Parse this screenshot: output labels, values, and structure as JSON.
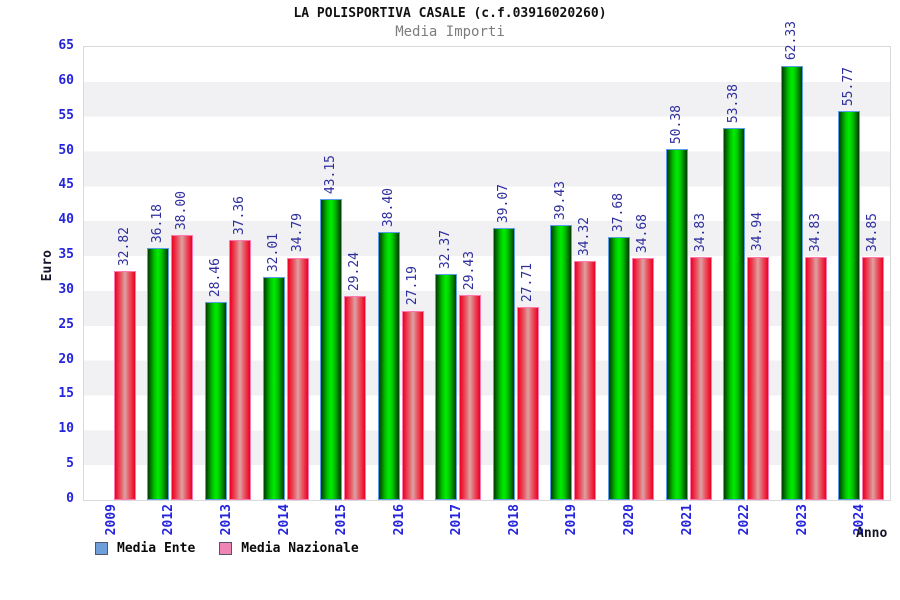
{
  "title": "LA POLISPORTIVA CASALE (c.f.03916020260)",
  "subtitle": "Media Importi",
  "ylabel": "Euro",
  "xlabel": "Anno",
  "legend": {
    "items": [
      {
        "label": "Media Ente",
        "color": "#6f9fd8"
      },
      {
        "label": "Media Nazionale",
        "color": "#ef85b5"
      }
    ]
  },
  "colors": {
    "ente_bar": "#00e000",
    "ente_border": "#5c9fe8",
    "nazionale_bar": "#ee0022",
    "nazionale_border": "#ff78b0",
    "axis_text": "#2424dd",
    "value_text": "#2e2e9e",
    "band_gray": "#f1f1f3",
    "band_white": "#ffffff"
  },
  "chart_data": {
    "type": "bar",
    "title": "Media Importi",
    "xlabel": "Anno",
    "ylabel": "Euro",
    "ylim": [
      0,
      65
    ],
    "ytick_step": 5,
    "grid": "alternating horizontal bands every 5 units",
    "legend_position": "bottom-left",
    "categories": [
      "2009",
      "2012",
      "2013",
      "2014",
      "2015",
      "2016",
      "2017",
      "2018",
      "2019",
      "2020",
      "2021",
      "2022",
      "2023",
      "2024"
    ],
    "series": [
      {
        "name": "Media Ente",
        "values": [
          null,
          36.18,
          28.46,
          32.01,
          43.15,
          38.4,
          32.37,
          39.07,
          39.43,
          37.68,
          50.38,
          53.38,
          62.33,
          55.77
        ],
        "labels": [
          "",
          "36.18",
          "28.46",
          "32.01",
          "43.15",
          "38.40",
          "32.37",
          "39.07",
          "39.43",
          "37.68",
          "50.38",
          "53.38",
          "62.33",
          "55.77"
        ]
      },
      {
        "name": "Media Nazionale",
        "values": [
          32.82,
          38.0,
          37.36,
          34.79,
          29.24,
          27.19,
          29.43,
          27.71,
          34.32,
          34.68,
          34.83,
          34.94,
          34.83,
          34.85
        ],
        "labels": [
          "32.82",
          "38.00",
          "37.36",
          "34.79",
          "29.24",
          "27.19",
          "29.43",
          "27.71",
          "34.32",
          "34.68",
          "34.83",
          "34.94",
          "34.83",
          "34.85"
        ]
      }
    ]
  }
}
